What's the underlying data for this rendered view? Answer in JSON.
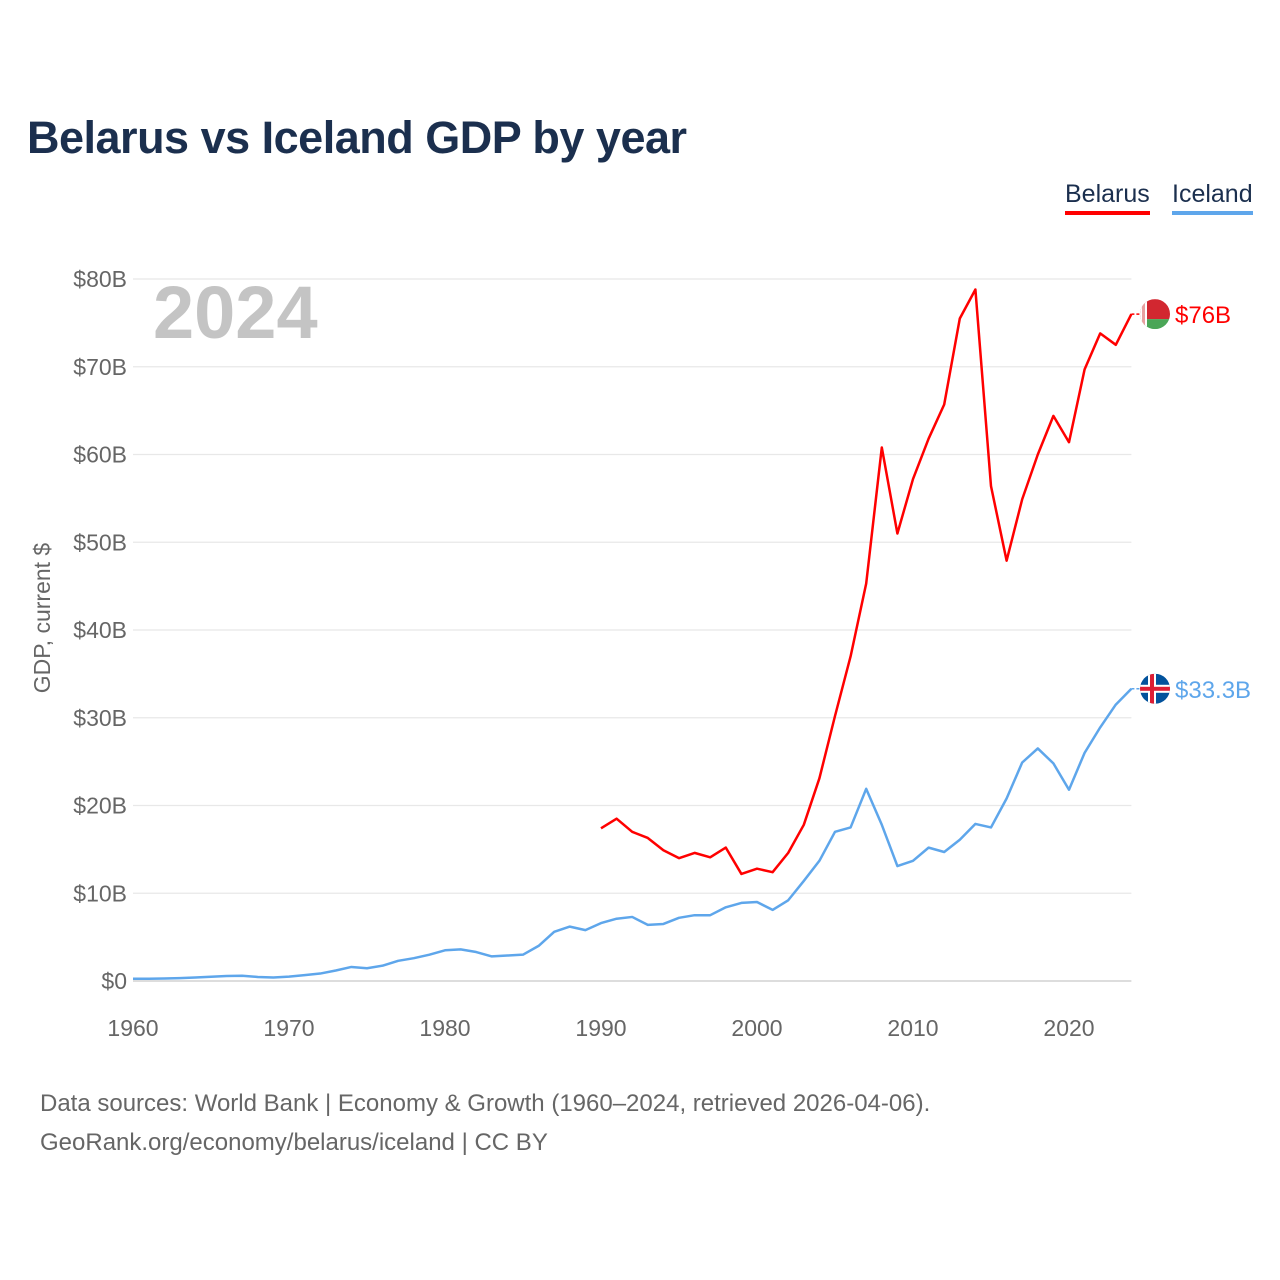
{
  "chart_data": {
    "type": "line",
    "title": "Belarus vs Iceland GDP by year",
    "ylabel": "GDP, current $",
    "xlabel": "",
    "xlim": [
      1960,
      2024
    ],
    "ylim": [
      0,
      80
    ],
    "x_ticks": [
      "1960",
      "1970",
      "1980",
      "1990",
      "2000",
      "2010",
      "2020"
    ],
    "y_ticks": [
      "$0",
      "$10B",
      "$20B",
      "$30B",
      "$40B",
      "$50B",
      "$60B",
      "$70B",
      "$80B"
    ],
    "grid": true,
    "legend_placement": "top-right",
    "year_label": "2024",
    "series": [
      {
        "name": "Belarus",
        "color": "#ff0000",
        "start_year": 1990,
        "end_label": "$76B",
        "flag": "belarus-flag",
        "values": [
          17.4,
          18.5,
          17.0,
          16.3,
          14.9,
          14.0,
          14.6,
          14.1,
          15.2,
          12.2,
          12.8,
          12.4,
          14.6,
          17.8,
          23.1,
          30.2,
          37.0,
          45.3,
          60.8,
          51.0,
          57.2,
          61.8,
          65.7,
          75.5,
          78.8,
          56.4,
          47.9,
          54.9,
          60.0,
          64.4,
          61.4,
          69.7,
          73.8,
          72.5,
          76.0
        ]
      },
      {
        "name": "Iceland",
        "color": "#5ea6eb",
        "start_year": 1960,
        "end_label": "$33.3B",
        "flag": "iceland-flag",
        "values": [
          0.25,
          0.26,
          0.29,
          0.33,
          0.4,
          0.48,
          0.57,
          0.6,
          0.46,
          0.4,
          0.5,
          0.67,
          0.85,
          1.2,
          1.6,
          1.45,
          1.75,
          2.3,
          2.6,
          3.0,
          3.5,
          3.6,
          3.3,
          2.8,
          2.9,
          3.0,
          4.0,
          5.6,
          6.2,
          5.8,
          6.6,
          7.1,
          7.3,
          6.4,
          6.5,
          7.2,
          7.5,
          7.5,
          8.4,
          8.9,
          9.0,
          8.1,
          9.2,
          11.4,
          13.7,
          17.0,
          17.5,
          21.9,
          17.8,
          13.1,
          13.7,
          15.2,
          14.7,
          16.1,
          17.9,
          17.5,
          20.8,
          24.9,
          26.5,
          24.8,
          21.8,
          26.0,
          28.9,
          31.5,
          33.3
        ]
      }
    ]
  },
  "footer": {
    "line1": "Data sources: World Bank | Economy & Growth (1960–2024, retrieved 2026-04-06).",
    "line2": "GeoRank.org/economy/belarus/iceland | CC BY"
  }
}
